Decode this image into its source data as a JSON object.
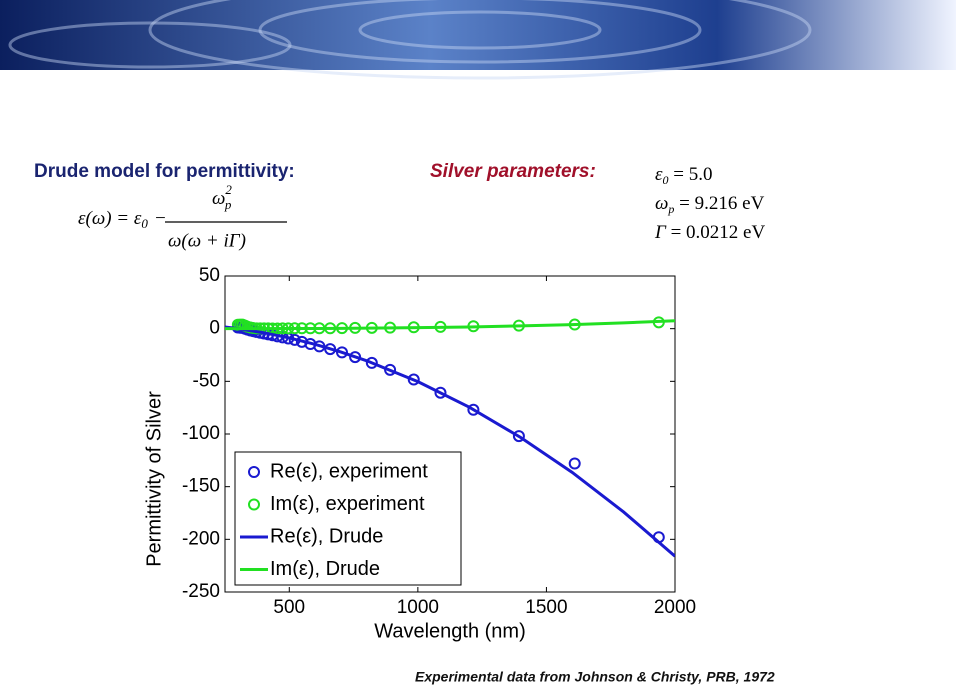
{
  "slide": {
    "left_heading": "Drude model for permittivity:",
    "right_heading": "Silver parameters:",
    "formula": {
      "lhs": "ε(ω) = ε",
      "lhs_sub": "0",
      "op": "−",
      "num": "ω",
      "num_sub": "p",
      "num_sup": "2",
      "den": "ω(ω + iΓ)"
    },
    "params": [
      {
        "sym": "ε",
        "sub": "0",
        "rest": " = 5.0"
      },
      {
        "sym": "ω",
        "sub": "p",
        "rest": " = 9.216   eV"
      },
      {
        "sym": "Γ",
        "rest": " = 0.0212   eV"
      }
    ],
    "footer": "Experimental data from Johnson & Christy, PRB, 1972"
  },
  "chart_data": {
    "type": "line",
    "xlabel": "Wavelength (nm)",
    "ylabel": "Permittivity of Silver",
    "xlim": [
      250,
      2000
    ],
    "ylim": [
      -250,
      50
    ],
    "xticks": [
      500,
      1000,
      1500,
      2000
    ],
    "yticks": [
      50,
      0,
      -50,
      -100,
      -150,
      -200,
      -250
    ],
    "legend": "lower left",
    "series": [
      {
        "name": "Re(ε), experiment",
        "color": "#1a1ad0",
        "style": "markers",
        "x": [
          1937,
          1610,
          1393,
          1216,
          1088,
          984,
          892,
          821,
          756,
          705,
          659,
          617,
          582,
          549,
          521,
          496,
          474,
          454,
          435,
          418,
          402,
          387,
          373,
          360,
          349,
          338,
          328,
          318,
          309,
          300
        ],
        "values": [
          -198,
          -128,
          -102,
          -77,
          -60.8,
          -48.3,
          -39.1,
          -32.5,
          -27.0,
          -22.5,
          -19.4,
          -16.8,
          -14.6,
          -12.5,
          -10.6,
          -9.3,
          -8.3,
          -7.3,
          -6.2,
          -5.4,
          -4.6,
          -3.9,
          -3.1,
          -2.4,
          -1.7,
          -0.9,
          -0.1,
          0.7,
          0.9,
          1.1
        ]
      },
      {
        "name": "Im(ε), experiment",
        "color": "#22e022",
        "style": "markers",
        "x": [
          1937,
          1610,
          1393,
          1216,
          1088,
          984,
          892,
          821,
          756,
          705,
          659,
          617,
          582,
          549,
          521,
          496,
          474,
          454,
          435,
          418,
          402,
          387,
          373,
          360,
          349,
          338,
          328,
          318,
          309,
          300
        ],
        "values": [
          6.0,
          3.9,
          2.9,
          2.3,
          1.7,
          1.3,
          1.0,
          0.8,
          0.7,
          0.5,
          0.4,
          0.4,
          0.4,
          0.4,
          0.4,
          0.3,
          0.3,
          0.2,
          0.2,
          0.3,
          0.3,
          0.3,
          0.3,
          0.6,
          1.1,
          1.8,
          2.9,
          3.8,
          3.8,
          3.7
        ]
      },
      {
        "name": "Re(ε), Drude",
        "color": "#1a1ad0",
        "style": "line",
        "x": [
          250,
          300,
          400,
          500,
          600,
          700,
          800,
          1000,
          1200,
          1400,
          1600,
          1800,
          2000
        ],
        "values": [
          1.55,
          0.03,
          -3.84,
          -8.81,
          -14.89,
          -22.07,
          -30.36,
          -50.25,
          -74.56,
          -103.3,
          -136.4,
          -174.0,
          -216.0
        ]
      },
      {
        "name": "Im(ε), Drude",
        "color": "#22e022",
        "style": "line",
        "x": [
          250,
          300,
          400,
          500,
          600,
          700,
          800,
          1000,
          1200,
          1400,
          1600,
          1800,
          2000
        ],
        "values": [
          0.015,
          0.026,
          0.06,
          0.118,
          0.204,
          0.324,
          0.484,
          0.945,
          1.632,
          2.592,
          3.87,
          5.51,
          7.56
        ]
      }
    ]
  }
}
